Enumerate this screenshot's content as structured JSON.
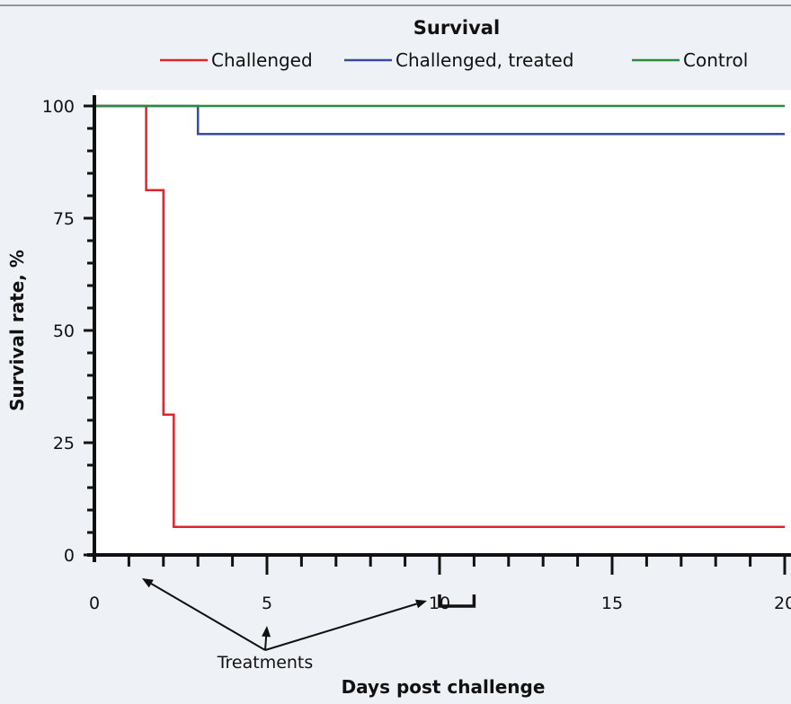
{
  "chart_data": {
    "type": "line",
    "title": "Survival",
    "xlabel": "Days post challenge",
    "ylabel": "Survival rate, %",
    "xlim": [
      0,
      20
    ],
    "ylim": [
      0,
      100
    ],
    "x_ticks": [
      0,
      5,
      10,
      15,
      20
    ],
    "y_ticks": [
      0,
      25,
      50,
      75,
      100
    ],
    "x_minor_step": 1,
    "y_minor_step": 5,
    "grid": false,
    "legend_position": "top",
    "series": [
      {
        "name": "Challenged",
        "color": "#e0242b",
        "step": true,
        "points": [
          [
            0,
            100
          ],
          [
            1.5,
            100
          ],
          [
            1.5,
            81.25
          ],
          [
            2,
            81.25
          ],
          [
            2,
            31.25
          ],
          [
            2.3,
            31.25
          ],
          [
            2.3,
            6.25
          ],
          [
            20,
            6.25
          ]
        ]
      },
      {
        "name": "Challenged, treated",
        "color": "#3a49a0",
        "step": true,
        "points": [
          [
            0,
            100
          ],
          [
            3,
            100
          ],
          [
            3,
            93.75
          ],
          [
            20,
            93.75
          ]
        ]
      },
      {
        "name": "Control",
        "color": "#2b8a3e",
        "step": true,
        "points": [
          [
            0,
            100
          ],
          [
            20,
            100
          ]
        ]
      }
    ],
    "annotations": {
      "treatments_label": "Treatments",
      "treatment_points": [
        1.3,
        5
      ],
      "treatment_range": [
        10,
        11
      ]
    }
  }
}
